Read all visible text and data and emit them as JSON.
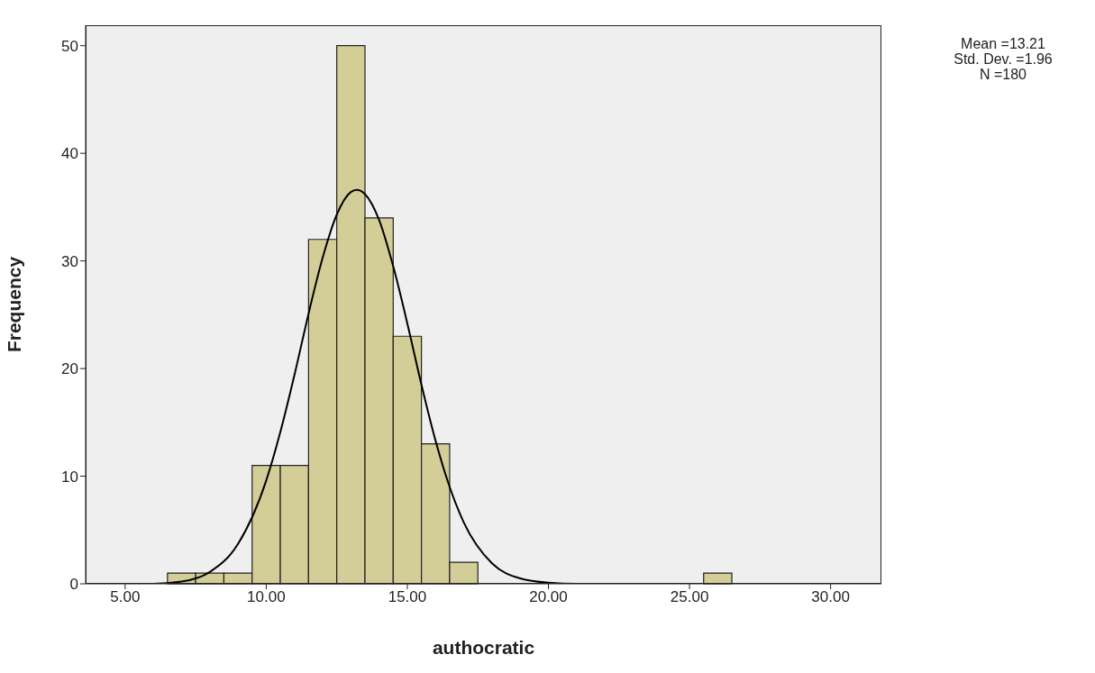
{
  "chart_data": {
    "type": "histogram",
    "xlabel": "authocratic",
    "ylabel": "Frequency",
    "bins": [
      6.5,
      7.5,
      8.5,
      9.5,
      10.5,
      11.5,
      12.5,
      13.5,
      14.5,
      15.5,
      16.5,
      17.5,
      18.5,
      19.5,
      20.5,
      21.5,
      22.5,
      23.5,
      24.5,
      25.5,
      26.5
    ],
    "values": [
      1,
      1,
      1,
      11,
      11,
      32,
      50,
      34,
      23,
      13,
      2,
      0,
      0,
      0,
      0,
      0,
      0,
      0,
      0,
      1
    ],
    "color": "#d3ce97",
    "series": [
      {
        "type": "line",
        "color": "#000000",
        "x": [
          5,
          6,
          7,
          8,
          9,
          10,
          10.5,
          11,
          11.5,
          12,
          12.5,
          13,
          13.21,
          13.5,
          14,
          14.5,
          15,
          15.5,
          16,
          16.5,
          17,
          18,
          19,
          20,
          21,
          22
        ],
        "values": [
          0,
          0,
          0.2,
          1.1,
          3.7,
          9.6,
          14.1,
          19.4,
          25.1,
          30.3,
          34.3,
          36.4,
          36.6,
          36.2,
          33.8,
          29.5,
          24.2,
          18.5,
          13.3,
          9,
          5.7,
          1.9,
          0.5,
          0.1,
          0,
          0
        ]
      }
    ],
    "xlim": [
      3.6,
      31.8
    ],
    "xticks": [
      {
        "value": 5,
        "label": "5.00"
      },
      {
        "value": 10,
        "label": "10.00"
      },
      {
        "value": 15,
        "label": "15.00"
      },
      {
        "value": 20,
        "label": "20.00"
      },
      {
        "value": 25,
        "label": "25.00"
      },
      {
        "value": 30,
        "label": "30.00"
      }
    ],
    "ylim": [
      0,
      51.9
    ],
    "yticks": [
      0,
      10,
      20,
      30,
      40,
      50
    ],
    "annotations": [
      "Mean =13.21",
      "Std. Dev. =1.96",
      "N =180"
    ]
  }
}
